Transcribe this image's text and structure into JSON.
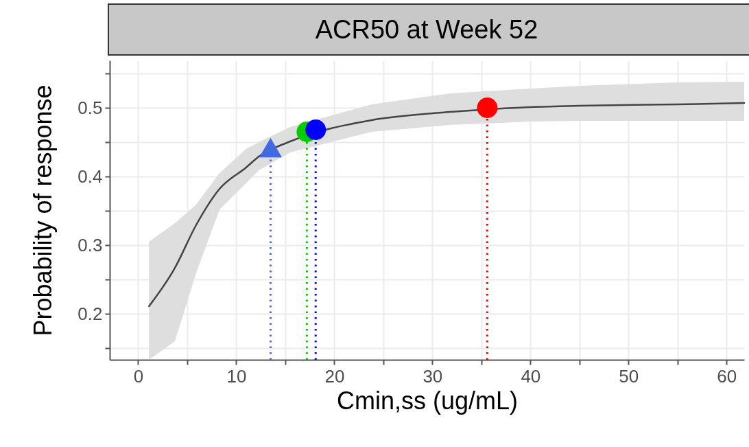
{
  "chart_data": {
    "type": "line",
    "title": "ACR50 at Week 52",
    "xlabel": "Cmin,ss (ug/mL)",
    "ylabel": "Probability of response",
    "xlim": [
      -2.9,
      61.8
    ],
    "ylim": [
      0.133,
      0.569
    ],
    "xticks": [
      0,
      {
        "value": 5,
        "label": null
      },
      10,
      {
        "value": 15,
        "label": null
      },
      20,
      {
        "value": 25,
        "label": null
      },
      30,
      {
        "value": 35,
        "label": null
      },
      40,
      {
        "value": 45,
        "label": null
      },
      50,
      {
        "value": 55,
        "label": null
      },
      60
    ],
    "yticks": [
      {
        "value": 0.15,
        "label": null
      },
      0.2,
      {
        "value": 0.25,
        "label": null
      },
      0.3,
      {
        "value": 0.35,
        "label": null
      },
      0.4,
      {
        "value": 0.45,
        "label": null
      },
      0.5,
      {
        "value": 0.55,
        "label": null
      }
    ],
    "grid": true,
    "series": [
      {
        "type": "line",
        "color": "#444444",
        "x": [
          1.1,
          3.75,
          5.9,
          8.3,
          11,
          12.3,
          15.5,
          23.8,
          31.8,
          40,
          45,
          55,
          61.8
        ],
        "values": [
          0.211,
          0.267,
          0.329,
          0.382,
          0.413,
          0.429,
          0.451,
          0.482,
          0.494,
          0.501,
          0.503,
          0.505,
          0.507
        ],
        "lower": [
          0.133,
          0.16,
          0.259,
          0.352,
          0.39,
          0.409,
          0.435,
          0.465,
          0.475,
          0.48,
          0.481,
          0.481,
          0.481
        ],
        "upper": [
          0.305,
          0.332,
          0.359,
          0.405,
          0.44,
          0.45,
          0.472,
          0.505,
          0.521,
          0.528,
          0.532,
          0.537,
          0.538
        ]
      },
      {
        "type": "scatter",
        "marker": "triangle",
        "color": "#4169e1",
        "x": [
          13.5
        ],
        "values": [
          0.442
        ]
      },
      {
        "type": "scatter",
        "marker": "circle",
        "color": "#00cc00",
        "x": [
          17.2
        ],
        "values": [
          0.465
        ]
      },
      {
        "type": "scatter",
        "marker": "circle",
        "color": "#0000ff",
        "x": [
          18.1
        ],
        "values": [
          0.468
        ]
      },
      {
        "type": "scatter",
        "marker": "circle",
        "color": "#ff0000",
        "x": [
          35.6
        ],
        "values": [
          0.5
        ]
      }
    ],
    "ref_lines": [
      {
        "axis": "x",
        "value": 13.5,
        "color": "#4169e1",
        "line_style": "dotted"
      },
      {
        "axis": "x",
        "value": 17.2,
        "color": "#00cc00",
        "line_style": "dotted"
      },
      {
        "axis": "x",
        "value": 18.1,
        "color": "#0000ff",
        "line_style": "dotted"
      },
      {
        "axis": "x",
        "value": 35.6,
        "color": "#ff0000",
        "line_style": "dotted"
      }
    ]
  }
}
